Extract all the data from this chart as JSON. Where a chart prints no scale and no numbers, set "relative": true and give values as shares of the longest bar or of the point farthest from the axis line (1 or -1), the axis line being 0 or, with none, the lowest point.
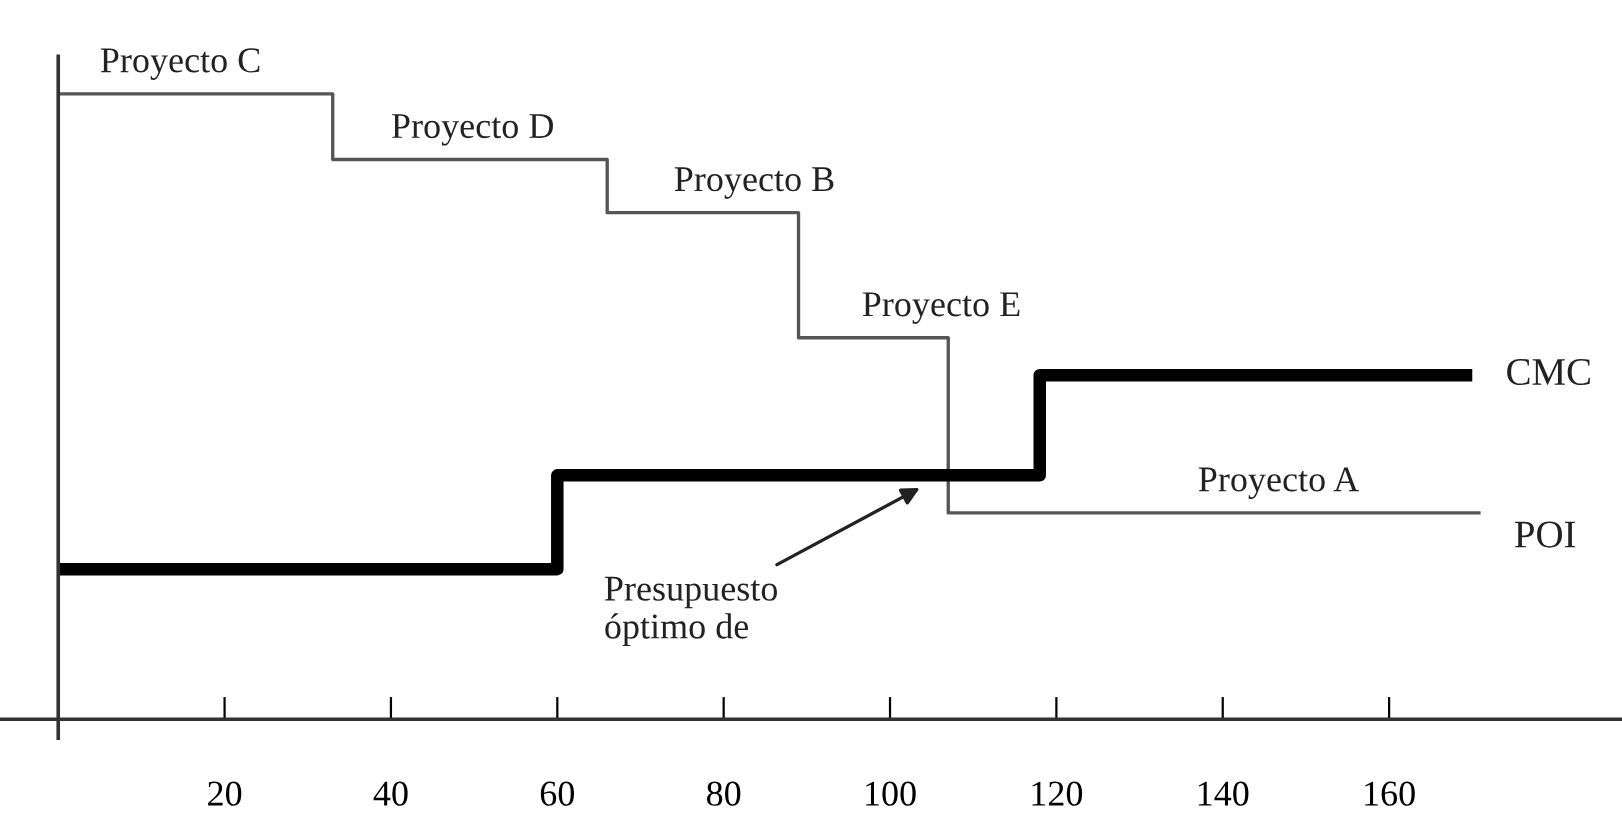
{
  "chart_data": {
    "type": "step",
    "relative": true,
    "tick_labels": "x",
    "grid": false,
    "legend": false,
    "xlim": [
      -7,
      188
    ],
    "xticks": [
      20,
      40,
      60,
      80,
      100,
      120,
      140,
      160
    ],
    "series": [
      {
        "name": "POI",
        "color": "#555555",
        "x": [
          0,
          33,
          66,
          89,
          107,
          171
        ],
        "values": [
          1,
          0.895,
          0.81,
          0.61,
          0.33,
          0.33
        ]
      },
      {
        "name": "CMC",
        "color": "#000000",
        "x": [
          0,
          60,
          118,
          170
        ],
        "values": [
          0.24,
          0.39,
          0.55,
          0.55
        ]
      }
    ],
    "annotations": [
      {
        "text": "Proyecto C",
        "x": 5,
        "y": 1
      },
      {
        "text": "Proyecto D",
        "x": 40,
        "y": 0.895
      },
      {
        "text": "Proyecto B",
        "x": 74,
        "y": 0.81
      },
      {
        "text": "Proyecto E",
        "x": 96.6,
        "y": 0.61
      },
      {
        "text": "Proyecto A",
        "x": 137,
        "y": 0.33
      },
      {
        "text": "Presupuesto\nóptimo de",
        "x": 103.6,
        "y": 0.37
      }
    ]
  }
}
